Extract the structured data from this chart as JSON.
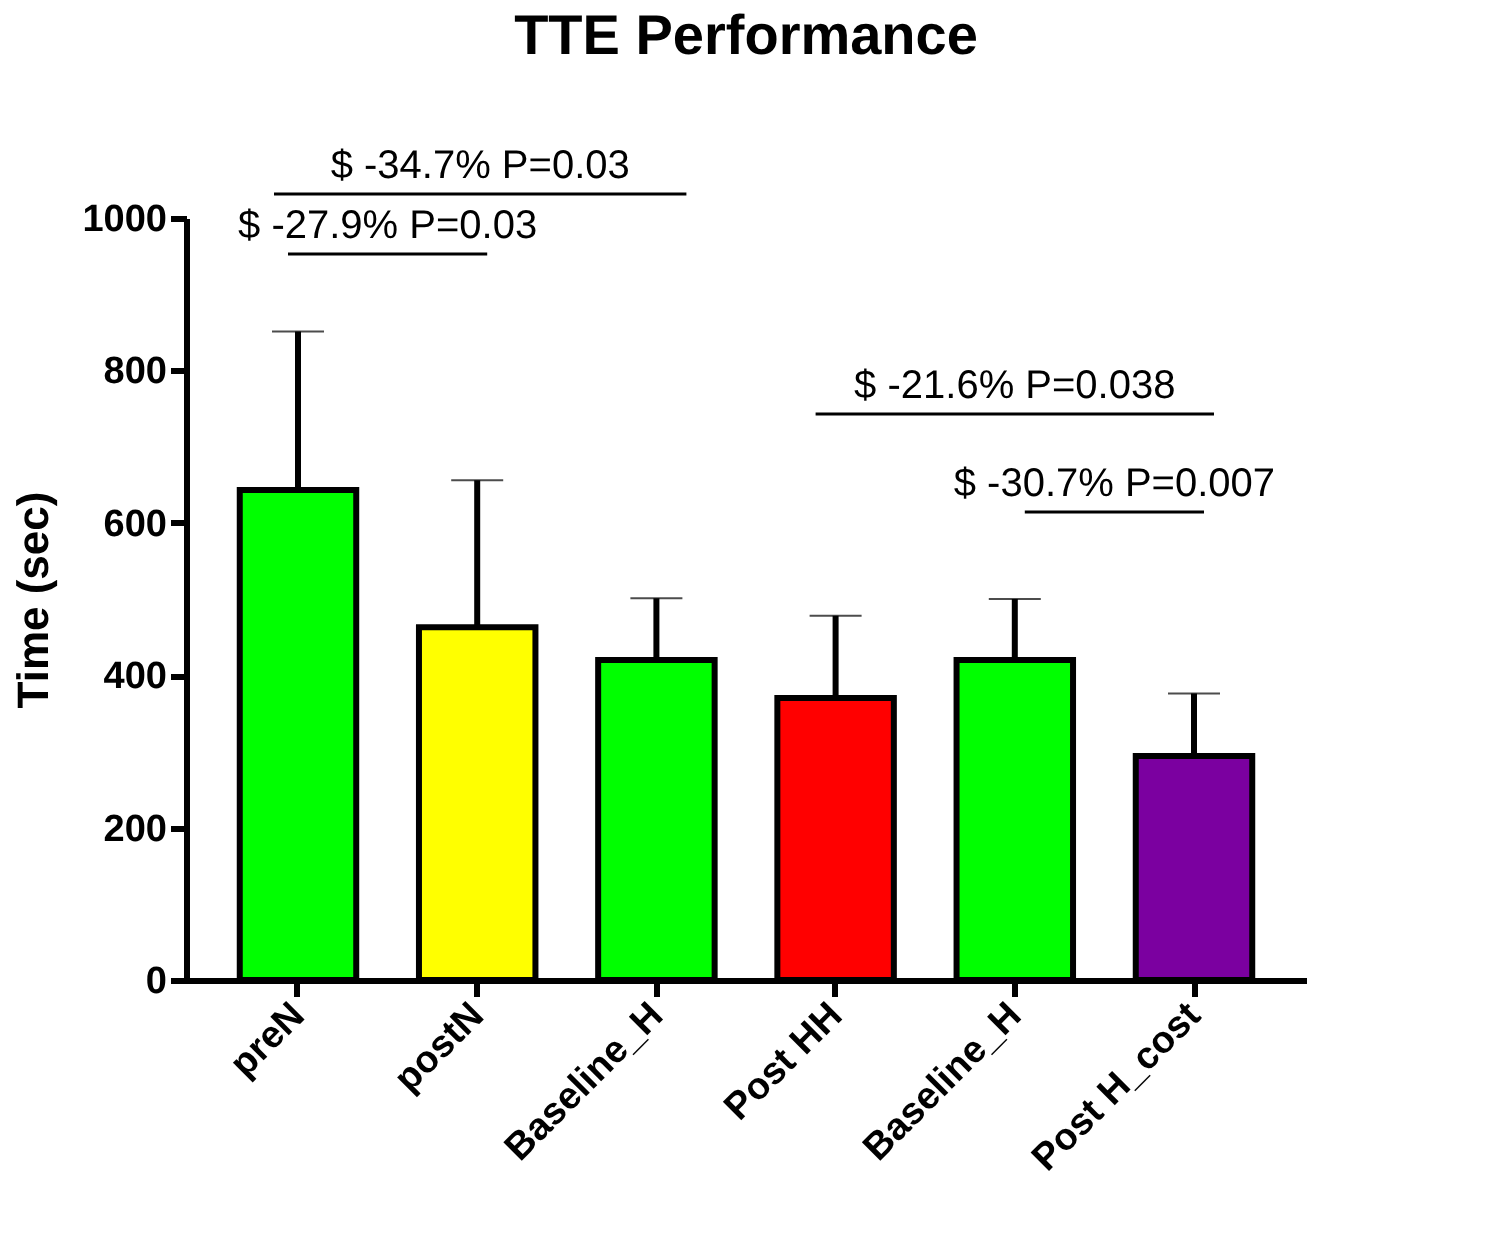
{
  "chart_data": {
    "type": "bar",
    "title": "TTE Performance",
    "ylabel": "Time (sec)",
    "categories": [
      "preN",
      "postN",
      "Baseline_H",
      "Post HH",
      "Baseline_H",
      "Post H_cost"
    ],
    "values": [
      643,
      463,
      420,
      370,
      420,
      294
    ],
    "colors": [
      "#00ff00",
      "#ffff00",
      "#00ff00",
      "#ff0000",
      "#00ff00",
      "#7b00a0"
    ],
    "errors": [
      [
        643,
        851
      ],
      [
        463,
        656
      ],
      [
        420,
        501
      ],
      [
        370,
        478
      ],
      [
        420,
        500
      ],
      [
        294,
        376
      ]
    ],
    "ylim": [
      0,
      1000
    ],
    "yticks": [
      0,
      200,
      400,
      600,
      800,
      1000
    ],
    "grid": false,
    "annotations": [
      "$ -34.7% P=0.03",
      "$ -27.9% P=0.03",
      "$ -21.6% P=0.038",
      "$ -30.7% P=0.007"
    ]
  }
}
